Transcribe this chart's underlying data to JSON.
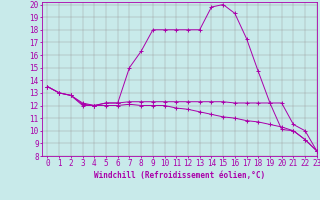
{
  "xlabel": "Windchill (Refroidissement éolien,°C)",
  "bg_color": "#c8eaea",
  "line_color": "#aa00aa",
  "grid_color": "#999999",
  "xlim": [
    -0.5,
    23
  ],
  "ylim": [
    8,
    20.2
  ],
  "yticks": [
    8,
    9,
    10,
    11,
    12,
    13,
    14,
    15,
    16,
    17,
    18,
    19,
    20
  ],
  "xticks": [
    0,
    1,
    2,
    3,
    4,
    5,
    6,
    7,
    8,
    9,
    10,
    11,
    12,
    13,
    14,
    15,
    16,
    17,
    18,
    19,
    20,
    21,
    22,
    23
  ],
  "line1_x": [
    0,
    1,
    2,
    3,
    4,
    5,
    6,
    7,
    8,
    9,
    10,
    11,
    12,
    13,
    14,
    15,
    16,
    17,
    18,
    19,
    20,
    21,
    22,
    23
  ],
  "line1_y": [
    13.5,
    13.0,
    12.8,
    12.0,
    12.0,
    12.2,
    12.2,
    15.0,
    16.3,
    18.0,
    18.0,
    18.0,
    18.0,
    18.0,
    19.8,
    20.0,
    19.3,
    17.3,
    14.7,
    12.2,
    10.1,
    10.0,
    9.3,
    8.4
  ],
  "line2_x": [
    0,
    1,
    2,
    3,
    4,
    5,
    6,
    7,
    8,
    9,
    10,
    11,
    12,
    13,
    14,
    15,
    16,
    17,
    18,
    19,
    20,
    21,
    22,
    23
  ],
  "line2_y": [
    13.5,
    13.0,
    12.8,
    12.2,
    12.0,
    12.2,
    12.2,
    12.3,
    12.3,
    12.3,
    12.3,
    12.3,
    12.3,
    12.3,
    12.3,
    12.3,
    12.2,
    12.2,
    12.2,
    12.2,
    12.2,
    10.5,
    10.0,
    8.4
  ],
  "line3_x": [
    0,
    1,
    2,
    3,
    4,
    5,
    6,
    7,
    8,
    9,
    10,
    11,
    12,
    13,
    14,
    15,
    16,
    17,
    18,
    19,
    20,
    21,
    22,
    23
  ],
  "line3_y": [
    13.5,
    13.0,
    12.8,
    12.1,
    12.0,
    12.0,
    12.0,
    12.1,
    12.0,
    12.0,
    12.0,
    11.8,
    11.7,
    11.5,
    11.3,
    11.1,
    11.0,
    10.8,
    10.7,
    10.5,
    10.3,
    10.0,
    9.3,
    8.4
  ],
  "tick_fontsize": 5.5,
  "xlabel_fontsize": 5.5
}
